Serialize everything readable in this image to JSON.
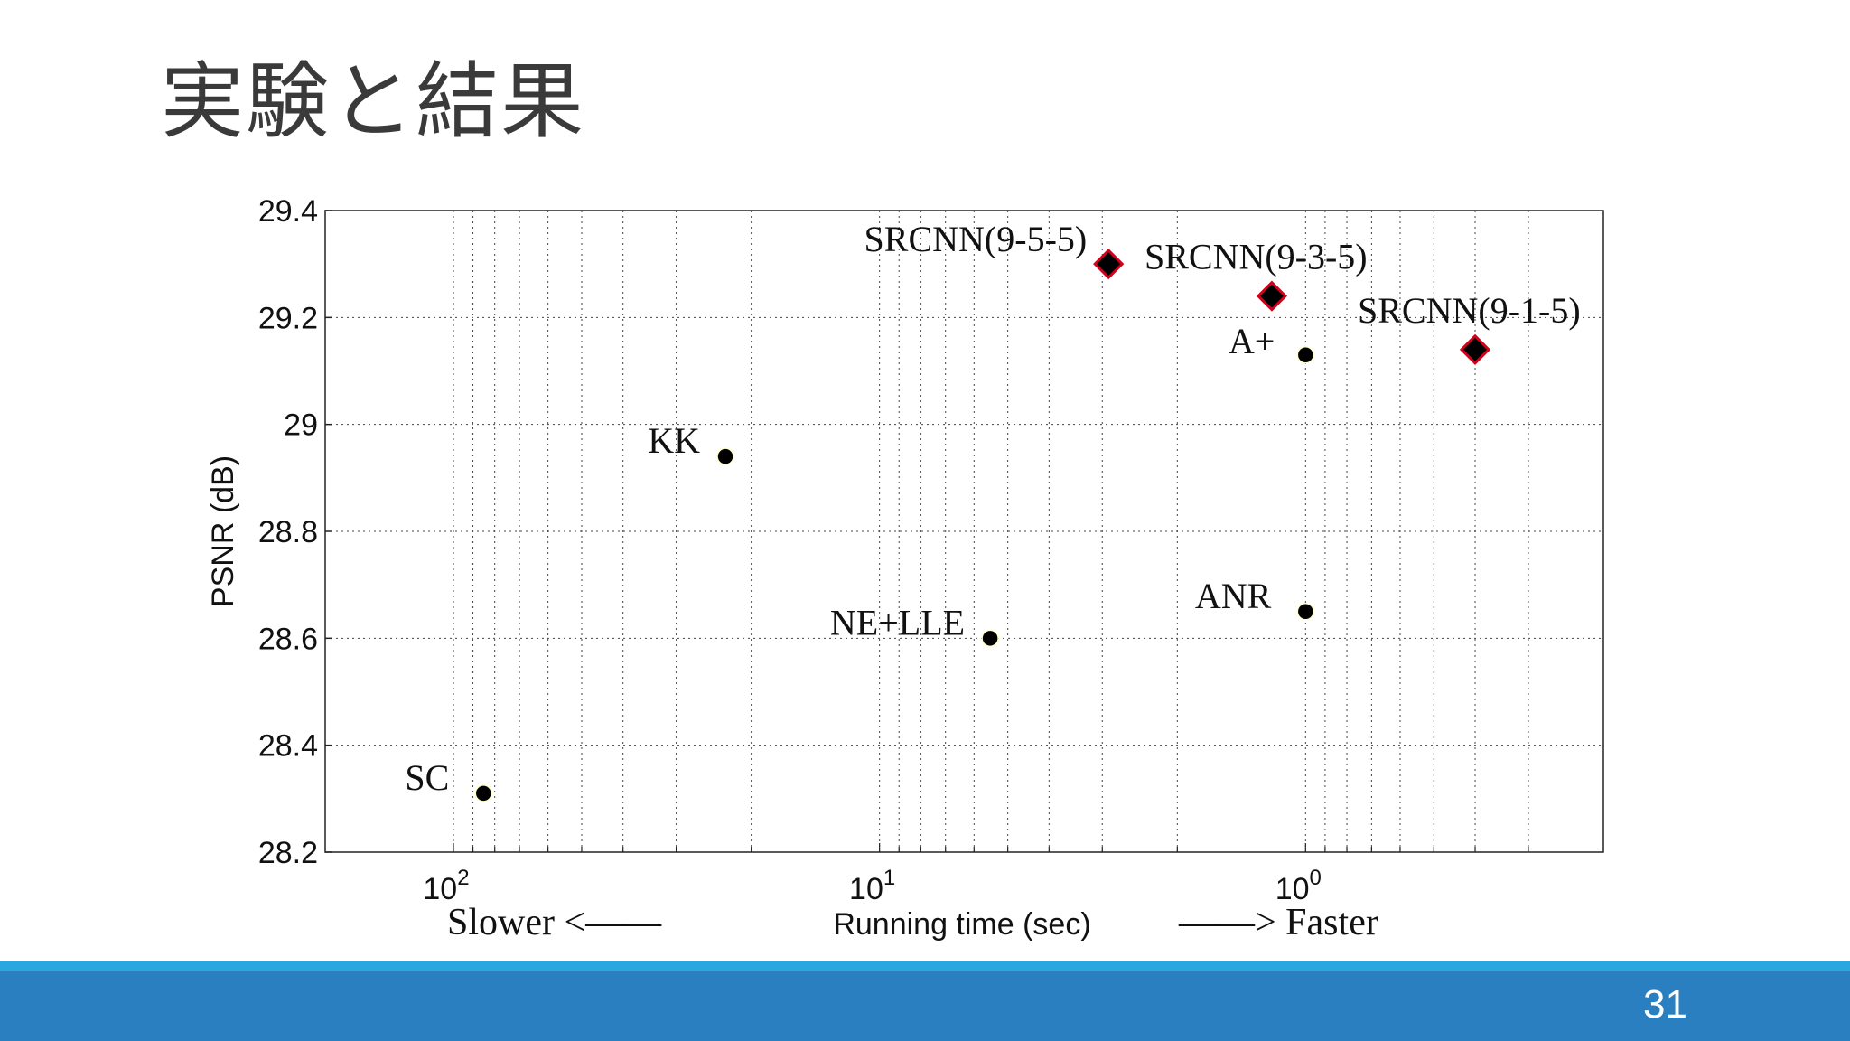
{
  "slide": {
    "title": "実験と結果",
    "page_number": "31"
  },
  "colors": {
    "footer_stripe": "#29a8e0",
    "footer_bar": "#2a7fc1",
    "point_fill": "#000000",
    "diamond_fill": "#000000",
    "diamond_edge": "#d0021b",
    "grid": "#444444"
  },
  "chart_data": {
    "type": "scatter",
    "title": "",
    "xlabel": "Running time (sec)",
    "ylabel": "PSNR (dB)",
    "x_scale": "log",
    "x_axis_reversed": true,
    "xlim": [
      200,
      0.2
    ],
    "ylim": [
      28.2,
      29.4
    ],
    "grid": true,
    "y_ticks": [
      "28.2",
      "28.4",
      "28.6",
      "28.8",
      "29",
      "29.2",
      "29.4"
    ],
    "x_ticks": [
      {
        "value": 100,
        "base": "10",
        "exp": "2"
      },
      {
        "value": 10,
        "base": "10",
        "exp": "1"
      },
      {
        "value": 1,
        "base": "10",
        "exp": "0"
      }
    ],
    "direction_labels": {
      "slower": "Slower <——",
      "faster": "——> Faster"
    },
    "series": [
      {
        "marker": "circle",
        "points": [
          {
            "label": "SC",
            "x": 85,
            "y": 28.31
          },
          {
            "label": "KK",
            "x": 23,
            "y": 28.94
          },
          {
            "label": "NE+LLE",
            "x": 5.5,
            "y": 28.6
          },
          {
            "label": "ANR",
            "x": 1.0,
            "y": 28.65
          },
          {
            "label": "A+",
            "x": 1.0,
            "y": 29.13
          }
        ]
      },
      {
        "marker": "diamond",
        "points": [
          {
            "label": "SRCNN(9-5-5)",
            "x": 2.9,
            "y": 29.3
          },
          {
            "label": "SRCNN(9-3-5)",
            "x": 1.2,
            "y": 29.24
          },
          {
            "label": "SRCNN(9-1-5)",
            "x": 0.4,
            "y": 29.14
          }
        ]
      }
    ]
  }
}
